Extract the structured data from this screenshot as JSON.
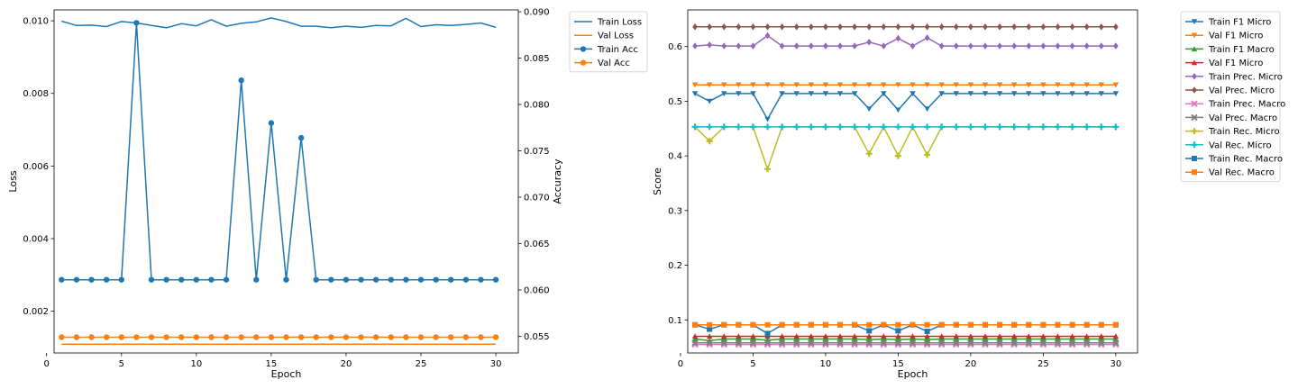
{
  "chart_data": [
    {
      "type": "line",
      "xlabel": "Epoch",
      "ylabel": "Loss",
      "y2label": "Accuracy",
      "xlim": [
        0.5,
        31.5
      ],
      "ylim": [
        0.00085,
        0.0103
      ],
      "y2lim": [
        0.0532,
        0.0902
      ],
      "xticks": [
        "0",
        "5",
        "10",
        "15",
        "20",
        "25",
        "30"
      ],
      "yticks": [
        "0.002",
        "0.004",
        "0.006",
        "0.008",
        "0.010"
      ],
      "y2ticks": [
        "0.055",
        "0.060",
        "0.065",
        "0.070",
        "0.075",
        "0.080",
        "0.085",
        "0.090"
      ],
      "legend": "outside-right-top",
      "x": [
        1,
        2,
        3,
        4,
        5,
        6,
        7,
        8,
        9,
        10,
        11,
        12,
        13,
        14,
        15,
        16,
        17,
        18,
        19,
        20,
        21,
        22,
        23,
        24,
        25,
        26,
        27,
        28,
        29,
        30
      ],
      "series": [
        {
          "name": "Train Loss",
          "axis": "left",
          "color": "#1f77b4",
          "marker": "none",
          "values": [
            0.00999,
            0.00987,
            0.00988,
            0.00984,
            0.00998,
            0.00994,
            0.00987,
            0.00981,
            0.00992,
            0.00986,
            0.01003,
            0.00985,
            0.00993,
            0.00997,
            0.01008,
            0.00998,
            0.00985,
            0.00985,
            0.00981,
            0.00985,
            0.00982,
            0.00987,
            0.00986,
            0.01007,
            0.00984,
            0.00989,
            0.00987,
            0.0099,
            0.00994,
            0.00982
          ]
        },
        {
          "name": "Val Loss",
          "axis": "left",
          "color": "#ff7f0e",
          "marker": "none",
          "values": [
            0.00109,
            0.00109,
            0.00109,
            0.00109,
            0.00109,
            0.00109,
            0.00109,
            0.00109,
            0.00109,
            0.00109,
            0.00109,
            0.00109,
            0.00109,
            0.00109,
            0.00109,
            0.00109,
            0.00109,
            0.00109,
            0.00109,
            0.00109,
            0.00109,
            0.00109,
            0.00109,
            0.00109,
            0.00109,
            0.00109,
            0.00109,
            0.00109,
            0.00109,
            0.00109
          ]
        },
        {
          "name": "Train Acc",
          "axis": "right",
          "color": "#1f77b4",
          "marker": "circle",
          "values": [
            0.0611,
            0.0611,
            0.0611,
            0.0611,
            0.0611,
            0.0888,
            0.0611,
            0.0611,
            0.0611,
            0.0611,
            0.0611,
            0.0611,
            0.0826,
            0.0611,
            0.078,
            0.0611,
            0.0764,
            0.0611,
            0.0611,
            0.0611,
            0.0611,
            0.0611,
            0.0611,
            0.0611,
            0.0611,
            0.0611,
            0.0611,
            0.0611,
            0.0611,
            0.0611
          ]
        },
        {
          "name": "Val Acc",
          "axis": "right",
          "color": "#ff7f0e",
          "marker": "circle",
          "values": [
            0.0549,
            0.0549,
            0.0549,
            0.0549,
            0.0549,
            0.0549,
            0.0549,
            0.0549,
            0.0549,
            0.0549,
            0.0549,
            0.0549,
            0.0549,
            0.0549,
            0.0549,
            0.0549,
            0.0549,
            0.0549,
            0.0549,
            0.0549,
            0.0549,
            0.0549,
            0.0549,
            0.0549,
            0.0549,
            0.0549,
            0.0549,
            0.0549,
            0.0549,
            0.0549
          ]
        }
      ]
    },
    {
      "type": "line",
      "xlabel": "Epoch",
      "ylabel": "Score",
      "xlim": [
        0.5,
        31.5
      ],
      "ylim": [
        0.0395,
        0.667
      ],
      "xticks": [
        "0",
        "5",
        "10",
        "15",
        "20",
        "25",
        "30"
      ],
      "yticks": [
        "0.1",
        "0.2",
        "0.3",
        "0.4",
        "0.5",
        "0.6"
      ],
      "legend": "outside-right-top",
      "x": [
        1,
        2,
        3,
        4,
        5,
        6,
        7,
        8,
        9,
        10,
        11,
        12,
        13,
        14,
        15,
        16,
        17,
        18,
        19,
        20,
        21,
        22,
        23,
        24,
        25,
        26,
        27,
        28,
        29,
        30
      ],
      "series": [
        {
          "name": "Train F1 Micro",
          "color": "#1f77b4",
          "marker": "triangle-down",
          "values": [
            0.514,
            0.5,
            0.514,
            0.514,
            0.514,
            0.467,
            0.514,
            0.514,
            0.514,
            0.514,
            0.514,
            0.514,
            0.486,
            0.514,
            0.484,
            0.514,
            0.486,
            0.514,
            0.514,
            0.514,
            0.514,
            0.514,
            0.514,
            0.514,
            0.514,
            0.514,
            0.514,
            0.514,
            0.514,
            0.514
          ]
        },
        {
          "name": "Val F1 Micro",
          "color": "#ff7f0e",
          "marker": "triangle-down",
          "values": [
            0.53,
            0.53,
            0.53,
            0.53,
            0.53,
            0.53,
            0.53,
            0.53,
            0.53,
            0.53,
            0.53,
            0.53,
            0.53,
            0.53,
            0.53,
            0.53,
            0.53,
            0.53,
            0.53,
            0.53,
            0.53,
            0.53,
            0.53,
            0.53,
            0.53,
            0.53,
            0.53,
            0.53,
            0.53,
            0.53
          ]
        },
        {
          "name": "Train F1 Macro",
          "color": "#2ca02c",
          "marker": "triangle-up",
          "values": [
            0.065,
            0.062,
            0.065,
            0.065,
            0.065,
            0.063,
            0.065,
            0.065,
            0.065,
            0.065,
            0.065,
            0.065,
            0.064,
            0.065,
            0.064,
            0.065,
            0.064,
            0.065,
            0.065,
            0.065,
            0.065,
            0.065,
            0.065,
            0.065,
            0.065,
            0.065,
            0.065,
            0.065,
            0.065,
            0.065
          ]
        },
        {
          "name": "Val F1 Micro",
          "color": "#d62728",
          "marker": "triangle-up",
          "values": [
            0.07,
            0.07,
            0.07,
            0.07,
            0.07,
            0.07,
            0.07,
            0.07,
            0.07,
            0.07,
            0.07,
            0.07,
            0.07,
            0.07,
            0.07,
            0.07,
            0.07,
            0.07,
            0.07,
            0.07,
            0.07,
            0.07,
            0.07,
            0.07,
            0.07,
            0.07,
            0.07,
            0.07,
            0.07,
            0.07
          ]
        },
        {
          "name": "Train Prec. Micro",
          "color": "#9467bd",
          "marker": "diamond",
          "values": [
            0.601,
            0.603,
            0.601,
            0.601,
            0.601,
            0.62,
            0.601,
            0.601,
            0.601,
            0.601,
            0.601,
            0.601,
            0.608,
            0.601,
            0.615,
            0.601,
            0.616,
            0.601,
            0.601,
            0.601,
            0.601,
            0.601,
            0.601,
            0.601,
            0.601,
            0.601,
            0.601,
            0.601,
            0.601,
            0.601
          ]
        },
        {
          "name": "Val Prec. Micro",
          "color": "#8c564b",
          "marker": "diamond",
          "values": [
            0.636,
            0.636,
            0.636,
            0.636,
            0.636,
            0.636,
            0.636,
            0.636,
            0.636,
            0.636,
            0.636,
            0.636,
            0.636,
            0.636,
            0.636,
            0.636,
            0.636,
            0.636,
            0.636,
            0.636,
            0.636,
            0.636,
            0.636,
            0.636,
            0.636,
            0.636,
            0.636,
            0.636,
            0.636,
            0.636
          ]
        },
        {
          "name": "Train Prec. Macro",
          "color": "#e377c2",
          "marker": "x",
          "values": [
            0.055,
            0.055,
            0.055,
            0.055,
            0.055,
            0.055,
            0.055,
            0.055,
            0.055,
            0.055,
            0.055,
            0.055,
            0.055,
            0.055,
            0.055,
            0.055,
            0.055,
            0.055,
            0.055,
            0.055,
            0.055,
            0.055,
            0.055,
            0.055,
            0.055,
            0.055,
            0.055,
            0.055,
            0.055,
            0.055
          ]
        },
        {
          "name": "Val Prec. Macro",
          "color": "#7f7f7f",
          "marker": "x",
          "values": [
            0.058,
            0.058,
            0.058,
            0.058,
            0.058,
            0.058,
            0.058,
            0.058,
            0.058,
            0.058,
            0.058,
            0.058,
            0.058,
            0.058,
            0.058,
            0.058,
            0.058,
            0.058,
            0.058,
            0.058,
            0.058,
            0.058,
            0.058,
            0.058,
            0.058,
            0.058,
            0.058,
            0.058,
            0.058,
            0.058
          ]
        },
        {
          "name": "Train Rec. Micro",
          "color": "#bcbd22",
          "marker": "plus",
          "values": [
            0.453,
            0.427,
            0.453,
            0.453,
            0.453,
            0.376,
            0.453,
            0.453,
            0.453,
            0.453,
            0.453,
            0.453,
            0.404,
            0.453,
            0.4,
            0.453,
            0.402,
            0.453,
            0.453,
            0.453,
            0.453,
            0.453,
            0.453,
            0.453,
            0.453,
            0.453,
            0.453,
            0.453,
            0.453,
            0.453
          ]
        },
        {
          "name": "Val Rec. Micro",
          "color": "#17becf",
          "marker": "plus",
          "values": [
            0.453,
            0.453,
            0.453,
            0.453,
            0.453,
            0.453,
            0.453,
            0.453,
            0.453,
            0.453,
            0.453,
            0.453,
            0.453,
            0.453,
            0.453,
            0.453,
            0.453,
            0.453,
            0.453,
            0.453,
            0.453,
            0.453,
            0.453,
            0.453,
            0.453,
            0.453,
            0.453,
            0.453,
            0.453,
            0.453
          ]
        },
        {
          "name": "Train Rec. Macro",
          "color": "#1f77b4",
          "marker": "square",
          "values": [
            0.091,
            0.083,
            0.091,
            0.091,
            0.091,
            0.075,
            0.091,
            0.091,
            0.091,
            0.091,
            0.091,
            0.091,
            0.08,
            0.091,
            0.08,
            0.091,
            0.079,
            0.091,
            0.091,
            0.091,
            0.091,
            0.091,
            0.091,
            0.091,
            0.091,
            0.091,
            0.091,
            0.091,
            0.091,
            0.091
          ]
        },
        {
          "name": "Val Rec. Macro",
          "color": "#ff7f0e",
          "marker": "square",
          "values": [
            0.091,
            0.091,
            0.091,
            0.091,
            0.091,
            0.091,
            0.091,
            0.091,
            0.091,
            0.091,
            0.091,
            0.091,
            0.091,
            0.091,
            0.091,
            0.091,
            0.091,
            0.091,
            0.091,
            0.091,
            0.091,
            0.091,
            0.091,
            0.091,
            0.091,
            0.091,
            0.091,
            0.091,
            0.091,
            0.091
          ]
        }
      ]
    }
  ]
}
